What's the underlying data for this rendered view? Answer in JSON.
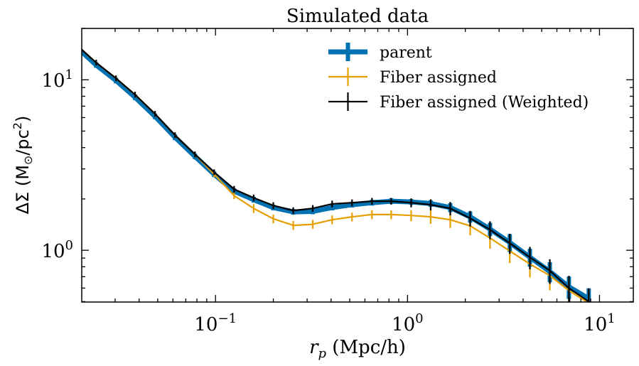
{
  "chart_data": {
    "type": "line",
    "title": "Simulated data",
    "xlabel": "r_p (Mpc/h)",
    "xlabel_parts": {
      "var": "r",
      "sub": "p",
      "unit": " (Mpc/h)"
    },
    "ylabel": "ΔΣ (M⊙/pc²)",
    "ylabel_parts": {
      "pre": "ΔΣ (M",
      "sub": "⊙",
      "mid": "/pc",
      "sup": "2",
      "post": ")"
    },
    "xscale": "log",
    "yscale": "log",
    "xlim": [
      0.0201,
      15.0
    ],
    "ylim": [
      0.497,
      20.0
    ],
    "grid": false,
    "legend_position": "top-right",
    "x_ticks": [
      {
        "value": 0.1,
        "base": "10",
        "exp": "−1"
      },
      {
        "value": 1,
        "base": "10",
        "exp": "0"
      },
      {
        "value": 10,
        "base": "10",
        "exp": "1"
      }
    ],
    "y_ticks": [
      {
        "value": 1,
        "base": "10",
        "exp": "0"
      },
      {
        "value": 10,
        "base": "10",
        "exp": "1"
      }
    ],
    "x": [
      0.0191,
      0.0239,
      0.0303,
      0.0381,
      0.0484,
      0.0615,
      0.0782,
      0.0984,
      0.125,
      0.158,
      0.2,
      0.254,
      0.321,
      0.405,
      0.514,
      0.653,
      0.822,
      1.045,
      1.32,
      1.67,
      2.12,
      2.69,
      3.41,
      4.34,
      5.51,
      6.93,
      8.79
    ],
    "series": [
      {
        "name": "parent",
        "color": "#0072b2",
        "style": "thick",
        "values": [
          15.4,
          12.2,
          9.9,
          7.9,
          6.1,
          4.6,
          3.55,
          2.79,
          2.22,
          1.98,
          1.78,
          1.68,
          1.69,
          1.78,
          1.85,
          1.9,
          1.94,
          1.92,
          1.88,
          1.78,
          1.57,
          1.33,
          1.11,
          0.91,
          0.75,
          0.61,
          0.52
        ],
        "errors": [
          0.01,
          0.01,
          0.01,
          0.01,
          0.01,
          0.01,
          0.01,
          0.01,
          0.01,
          0.01,
          0.01,
          0.01,
          0.01,
          0.01,
          0.01,
          0.012,
          0.012,
          0.012,
          0.015,
          0.02,
          0.025,
          0.03,
          0.04,
          0.04,
          0.045,
          0.05,
          0.05
        ]
      },
      {
        "name": "Fiber assigned",
        "color": "#e69f00",
        "style": "thin",
        "values": [
          15.8,
          12.6,
          10.2,
          8.18,
          6.31,
          4.73,
          3.65,
          2.79,
          2.09,
          1.76,
          1.53,
          1.4,
          1.42,
          1.51,
          1.57,
          1.62,
          1.62,
          1.6,
          1.57,
          1.51,
          1.39,
          1.18,
          0.99,
          0.83,
          0.71,
          0.58,
          0.49
        ],
        "errors": [
          0.01,
          0.01,
          0.01,
          0.01,
          0.01,
          0.01,
          0.01,
          0.01,
          0.015,
          0.02,
          0.02,
          0.02,
          0.02,
          0.02,
          0.02,
          0.02,
          0.02,
          0.025,
          0.03,
          0.035,
          0.04,
          0.045,
          0.05,
          0.055,
          0.06,
          0.065,
          0.07
        ]
      },
      {
        "name": "Fiber assigned (Weighted)",
        "color": "#000000",
        "style": "thin",
        "values": [
          15.8,
          12.6,
          10.2,
          8.18,
          6.31,
          4.73,
          3.65,
          2.87,
          2.28,
          2.03,
          1.83,
          1.71,
          1.76,
          1.87,
          1.9,
          1.94,
          1.94,
          1.9,
          1.85,
          1.76,
          1.54,
          1.32,
          1.1,
          0.91,
          0.76,
          0.6,
          0.5
        ],
        "errors": [
          0.01,
          0.01,
          0.01,
          0.01,
          0.01,
          0.01,
          0.01,
          0.01,
          0.015,
          0.015,
          0.015,
          0.015,
          0.015,
          0.015,
          0.015,
          0.015,
          0.015,
          0.02,
          0.025,
          0.03,
          0.035,
          0.04,
          0.045,
          0.05,
          0.055,
          0.06,
          0.065
        ]
      }
    ]
  }
}
